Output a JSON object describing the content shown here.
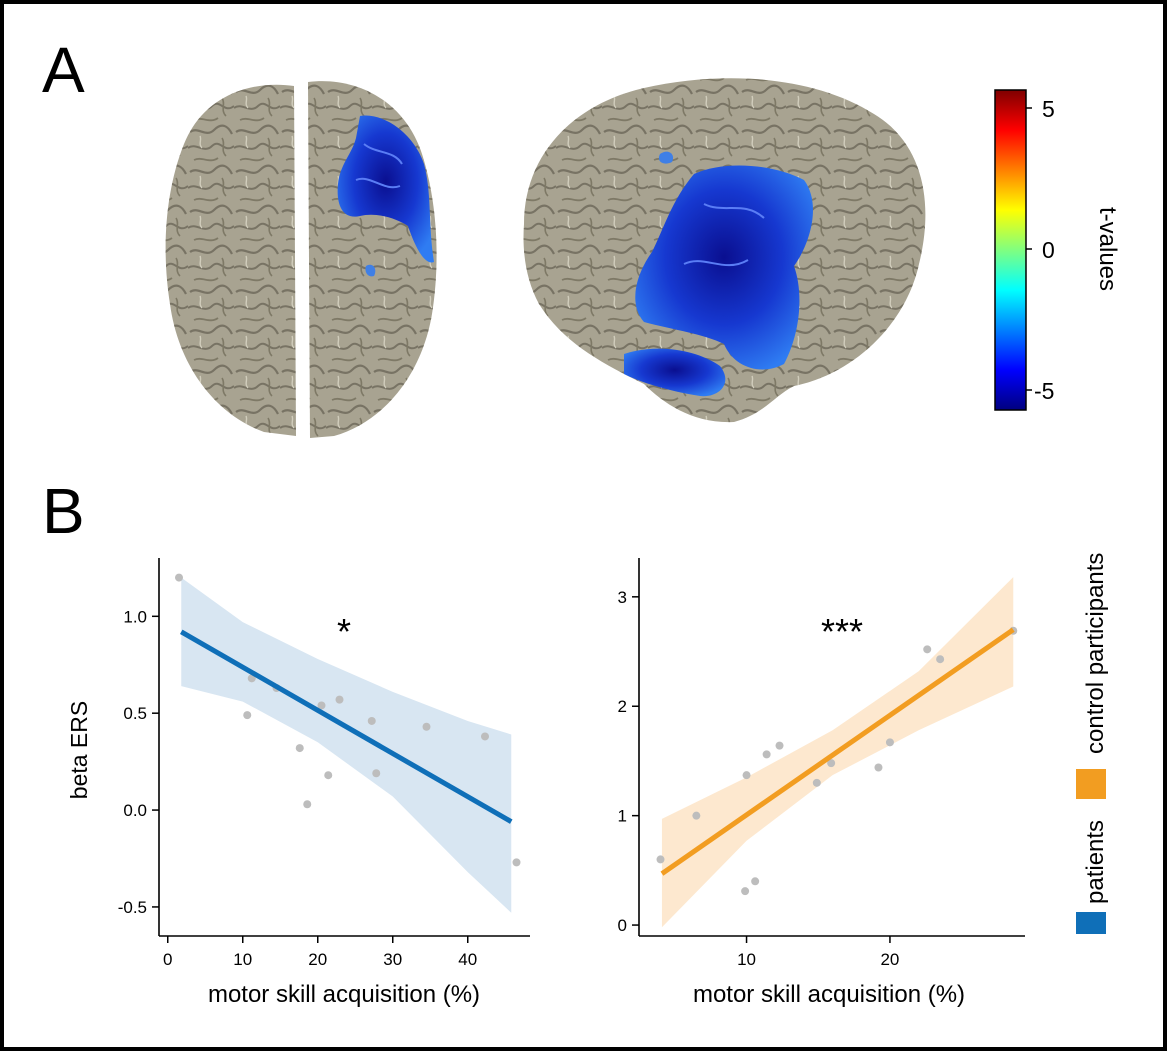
{
  "panels": {
    "a_label": "A",
    "b_label": "B"
  },
  "colorbar": {
    "label": "t-values",
    "ticks": [
      "5",
      "0",
      "-5"
    ],
    "stops": [
      "#7f0000",
      "#ff0000",
      "#ff8000",
      "#ffff00",
      "#80ff80",
      "#00ffff",
      "#0080ff",
      "#0000ff",
      "#00007f"
    ]
  },
  "colors": {
    "cortex": "#a8a391",
    "cortex_dark": "#6f6a5c",
    "activation_dark": "#0a1bb0",
    "activation_light": "#2a78f0",
    "patients": "#0f6fb8",
    "patients_band": "#d8e6f2",
    "controls": "#f29d21",
    "controls_band": "#fde8cf",
    "points": "#bdbdbd"
  },
  "legend": [
    {
      "label": "patients",
      "color": "#0f6fb8"
    },
    {
      "label": "control participants",
      "color": "#f29d21"
    }
  ],
  "chart_data": [
    {
      "type": "scatter",
      "group": "patients",
      "xlabel": "motor skill acquisition (%)",
      "ylabel": "beta ERS",
      "annotation": "*",
      "xlim": [
        -0.5,
        47.5
      ],
      "ylim": [
        -0.65,
        1.27
      ],
      "xticks": [
        0,
        10,
        20,
        30,
        40
      ],
      "yticks": [
        -0.5,
        0.0,
        0.5,
        1.0
      ],
      "ytick_labels": [
        "-0.5",
        "0.0",
        "0.5",
        "1.0"
      ],
      "points": [
        {
          "x": 1.5,
          "y": 1.2
        },
        {
          "x": 10.6,
          "y": 0.49
        },
        {
          "x": 11.2,
          "y": 0.68
        },
        {
          "x": 14.5,
          "y": 0.63
        },
        {
          "x": 17.6,
          "y": 0.32
        },
        {
          "x": 18.6,
          "y": 0.03
        },
        {
          "x": 20.5,
          "y": 0.54
        },
        {
          "x": 21.4,
          "y": 0.18
        },
        {
          "x": 22.9,
          "y": 0.57
        },
        {
          "x": 27.2,
          "y": 0.46
        },
        {
          "x": 27.8,
          "y": 0.19
        },
        {
          "x": 34.5,
          "y": 0.43
        },
        {
          "x": 42.3,
          "y": 0.38
        },
        {
          "x": 46.5,
          "y": -0.27
        }
      ],
      "fit": {
        "x": [
          1.8,
          45.8
        ],
        "y": [
          0.92,
          -0.06
        ]
      },
      "band": {
        "x": [
          1.8,
          10,
          20,
          30,
          40,
          45.8
        ],
        "upper": [
          1.2,
          0.97,
          0.78,
          0.61,
          0.46,
          0.39
        ],
        "lower": [
          0.64,
          0.56,
          0.35,
          0.07,
          -0.32,
          -0.53
        ]
      }
    },
    {
      "type": "scatter",
      "group": "control participants",
      "xlabel": "motor skill acquisition (%)",
      "ylabel": "",
      "annotation": "***",
      "xlim": [
        2.5,
        29
      ],
      "ylim": [
        -0.1,
        3.3
      ],
      "xticks": [
        10,
        20
      ],
      "yticks": [
        0,
        1,
        2,
        3
      ],
      "ytick_labels": [
        "0",
        "1",
        "2",
        "3"
      ],
      "points": [
        {
          "x": 4.0,
          "y": 0.6
        },
        {
          "x": 6.5,
          "y": 1.0
        },
        {
          "x": 9.9,
          "y": 0.31
        },
        {
          "x": 10.0,
          "y": 1.37
        },
        {
          "x": 10.6,
          "y": 0.4
        },
        {
          "x": 11.4,
          "y": 1.56
        },
        {
          "x": 12.3,
          "y": 1.64
        },
        {
          "x": 14.9,
          "y": 1.3
        },
        {
          "x": 15.9,
          "y": 1.48
        },
        {
          "x": 19.2,
          "y": 1.44
        },
        {
          "x": 20.0,
          "y": 1.67
        },
        {
          "x": 22.6,
          "y": 2.52
        },
        {
          "x": 23.5,
          "y": 2.43
        },
        {
          "x": 28.6,
          "y": 2.69
        }
      ],
      "fit": {
        "x": [
          4.1,
          28.6
        ],
        "y": [
          0.47,
          2.7
        ]
      },
      "band": {
        "x": [
          4.1,
          10,
          16,
          22,
          28.6
        ],
        "upper": [
          0.97,
          1.35,
          1.78,
          2.32,
          3.18
        ],
        "lower": [
          -0.02,
          0.77,
          1.37,
          1.78,
          2.18
        ]
      }
    }
  ]
}
